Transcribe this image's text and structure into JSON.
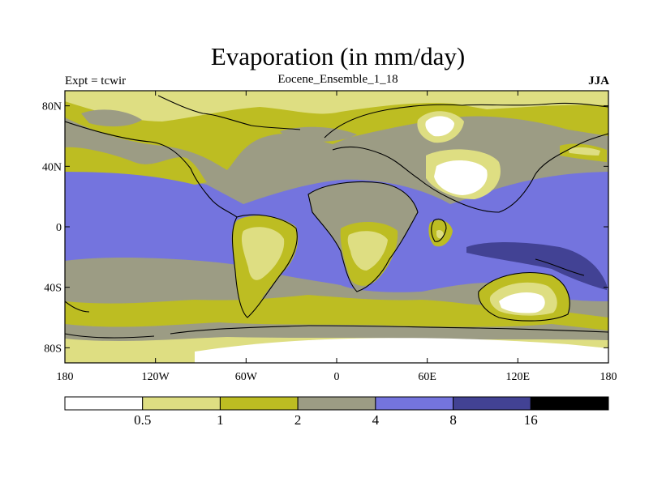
{
  "title": "Evaporation (in mm/day)",
  "left_label": "Expt = tcwir",
  "center_label": "Eocene_Ensemble_1_18",
  "right_label": "JJA",
  "lat_ticks": [
    {
      "value": 80,
      "label": "80N"
    },
    {
      "value": 40,
      "label": "40N"
    },
    {
      "value": 0,
      "label": "0"
    },
    {
      "value": -40,
      "label": "40S"
    },
    {
      "value": -80,
      "label": "80S"
    }
  ],
  "lon_ticks": [
    {
      "value": -180,
      "label": "180"
    },
    {
      "value": -120,
      "label": "120W"
    },
    {
      "value": -60,
      "label": "60W"
    },
    {
      "value": 0,
      "label": "0"
    },
    {
      "value": 60,
      "label": "60E"
    },
    {
      "value": 120,
      "label": "120E"
    },
    {
      "value": 180,
      "label": "180"
    }
  ],
  "colorbar": {
    "colors": [
      "#ffffff",
      "#dede82",
      "#bdbd22",
      "#9c9c84",
      "#7474de",
      "#424294",
      "#000000"
    ],
    "labels": [
      "0.5",
      "1",
      "2",
      "4",
      "8",
      "16"
    ]
  }
}
